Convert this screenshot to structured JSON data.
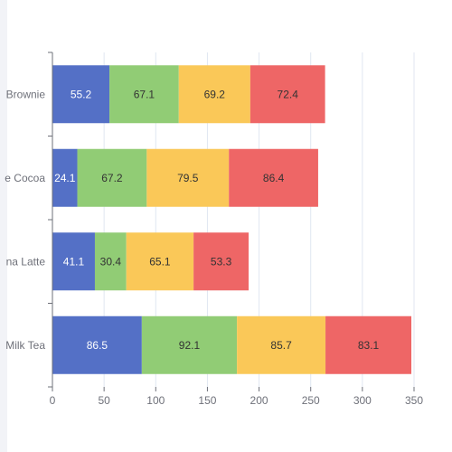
{
  "chart_data": {
    "type": "bar",
    "orientation": "horizontal",
    "stacked": true,
    "categories": [
      "Milk Tea",
      "Matcha Latte",
      "Hot Cocoa",
      "Brownie"
    ],
    "visible_category_labels": [
      "Milk Tea",
      "na Latte",
      "e Cocoa",
      "Brownie"
    ],
    "series": [
      {
        "values": [
          86.5,
          41.1,
          24.1,
          55.2
        ],
        "color": "#5470c6",
        "label_color": "#ffffff"
      },
      {
        "values": [
          92.1,
          30.4,
          67.2,
          67.1
        ],
        "color": "#91cc75",
        "label_color": "#333333"
      },
      {
        "values": [
          85.7,
          65.1,
          79.5,
          69.2
        ],
        "color": "#fac858",
        "label_color": "#333333"
      },
      {
        "values": [
          83.1,
          53.3,
          86.4,
          72.4
        ],
        "color": "#ee6666",
        "label_color": "#333333"
      }
    ],
    "xlim": [
      0,
      350
    ],
    "xticks": [
      0,
      50,
      100,
      150,
      200,
      250,
      300,
      350
    ],
    "xlabel": "",
    "ylabel": "",
    "grid": true,
    "data_labels": true
  },
  "colors": {
    "grid": "#e0e6f1",
    "axis": "#6e7079",
    "background": "#ffffff"
  }
}
